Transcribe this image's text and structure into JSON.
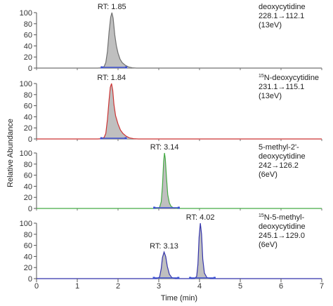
{
  "chart_data": {
    "type": "line",
    "ylabel": "Relative Abundance",
    "xlabel": "Time (min)",
    "xlim": [
      0,
      7
    ],
    "x_ticks": [
      "0",
      "1",
      "2",
      "3",
      "4",
      "5",
      "6",
      "7"
    ],
    "ylim": [
      0,
      100
    ],
    "y_ticks": [
      "0",
      "20",
      "40",
      "60",
      "80",
      "100"
    ],
    "panels": [
      {
        "label_lines": [
          "deoxycytidine",
          "228.1→112.1",
          "(13eV)"
        ],
        "label_sup": "",
        "line_color": "#707070",
        "peaks": [
          {
            "rt_label": "RT: 1.85",
            "rt": 1.85,
            "height": 100
          }
        ],
        "points": [
          [
            0,
            0
          ],
          [
            1.5,
            0
          ],
          [
            1.6,
            0.5
          ],
          [
            1.66,
            3
          ],
          [
            1.7,
            10
          ],
          [
            1.74,
            30
          ],
          [
            1.78,
            65
          ],
          [
            1.82,
            92
          ],
          [
            1.85,
            100
          ],
          [
            1.88,
            90
          ],
          [
            1.92,
            60
          ],
          [
            1.96,
            40
          ],
          [
            2.0,
            27
          ],
          [
            2.05,
            16
          ],
          [
            2.1,
            10
          ],
          [
            2.18,
            5
          ],
          [
            2.26,
            2
          ],
          [
            2.35,
            0.5
          ],
          [
            2.45,
            0
          ],
          [
            7,
            0
          ]
        ]
      },
      {
        "label_lines": [
          "N-deoxycytidine",
          "231.1→115.1",
          "(13eV)"
        ],
        "label_sup": "15",
        "line_color": "#cc3333",
        "peaks": [
          {
            "rt_label": "RT: 1.84",
            "rt": 1.84,
            "height": 100
          }
        ],
        "points": [
          [
            0,
            0
          ],
          [
            1.5,
            0
          ],
          [
            1.6,
            0.5
          ],
          [
            1.66,
            3
          ],
          [
            1.7,
            10
          ],
          [
            1.74,
            35
          ],
          [
            1.78,
            70
          ],
          [
            1.81,
            93
          ],
          [
            1.84,
            100
          ],
          [
            1.87,
            88
          ],
          [
            1.9,
            62
          ],
          [
            1.94,
            42
          ],
          [
            2.0,
            27
          ],
          [
            2.06,
            16
          ],
          [
            2.12,
            10
          ],
          [
            2.2,
            5
          ],
          [
            2.28,
            2
          ],
          [
            2.38,
            0.5
          ],
          [
            2.5,
            0
          ],
          [
            7,
            0
          ]
        ]
      },
      {
        "label_lines": [
          "5-methyl-2'-",
          "deoxycytidine",
          "242→126.2",
          "(6eV)"
        ],
        "label_sup": "",
        "line_color": "#44aa44",
        "peaks": [
          {
            "rt_label": "RT: 3.14",
            "rt": 3.14,
            "height": 100
          }
        ],
        "points": [
          [
            0,
            0
          ],
          [
            2.95,
            0
          ],
          [
            3.02,
            2
          ],
          [
            3.06,
            12
          ],
          [
            3.09,
            40
          ],
          [
            3.12,
            85
          ],
          [
            3.14,
            100
          ],
          [
            3.16,
            90
          ],
          [
            3.19,
            55
          ],
          [
            3.22,
            25
          ],
          [
            3.26,
            10
          ],
          [
            3.3,
            4
          ],
          [
            3.36,
            1
          ],
          [
            3.45,
            0
          ],
          [
            7,
            0
          ]
        ]
      },
      {
        "label_lines": [
          "N-5-methyl-",
          "deoxycytidine",
          "245.1→129.0",
          "(6eV)"
        ],
        "label_sup": "15",
        "line_color": "#3333aa",
        "peaks": [
          {
            "rt_label": "RT: 3.13",
            "rt": 3.13,
            "height": 48
          },
          {
            "rt_label": "RT: 4.02",
            "rt": 4.02,
            "height": 100
          }
        ],
        "points": [
          [
            0,
            0
          ],
          [
            2.95,
            0
          ],
          [
            3.02,
            3
          ],
          [
            3.06,
            18
          ],
          [
            3.09,
            38
          ],
          [
            3.13,
            48
          ],
          [
            3.17,
            40
          ],
          [
            3.21,
            22
          ],
          [
            3.26,
            8
          ],
          [
            3.32,
            2
          ],
          [
            3.4,
            0
          ],
          [
            3.88,
            0
          ],
          [
            3.93,
            4
          ],
          [
            3.96,
            25
          ],
          [
            3.99,
            75
          ],
          [
            4.02,
            100
          ],
          [
            4.05,
            80
          ],
          [
            4.08,
            35
          ],
          [
            4.12,
            10
          ],
          [
            4.18,
            2
          ],
          [
            4.26,
            0
          ],
          [
            7,
            0
          ]
        ]
      }
    ]
  }
}
